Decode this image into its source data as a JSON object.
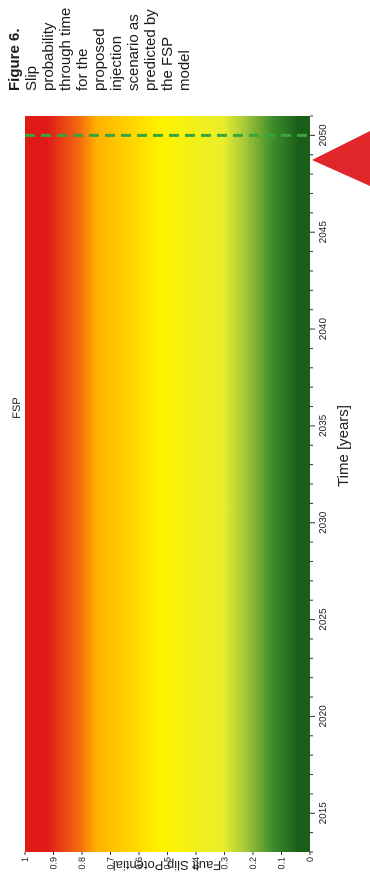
{
  "chart_data": {
    "type": "heatmap",
    "title": "FSP",
    "xlabel": "Time [years]",
    "ylabel": "Fault Slip Potential",
    "xlim": [
      2013,
      2051
    ],
    "ylim": [
      0,
      1
    ],
    "x_ticks": [
      "2015",
      "2020",
      "2025",
      "2030",
      "2035",
      "2040",
      "2045",
      "2050"
    ],
    "y_ticks": [
      "0",
      "0.1",
      "0.2",
      "0.3",
      "0.4",
      "0.5",
      "0.6",
      "0.7",
      "0.8",
      "0.9",
      "1"
    ],
    "color_bands": [
      {
        "from": 0.0,
        "to": 0.08,
        "color": "#1a5e1a"
      },
      {
        "from": 0.08,
        "to": 0.18,
        "color": "#3d8c2a"
      },
      {
        "from": 0.18,
        "to": 0.28,
        "color": "#a6c93a"
      },
      {
        "from": 0.28,
        "to": 0.33,
        "color": "#e9ee2c"
      },
      {
        "from": 0.33,
        "to": 0.72,
        "color": "#fff200"
      },
      {
        "from": 0.72,
        "to": 0.78,
        "color": "#ffb000"
      },
      {
        "from": 0.78,
        "to": 0.84,
        "color": "#f36a10"
      },
      {
        "from": 0.84,
        "to": 1.0,
        "color": "#e01b17"
      }
    ],
    "markers": [
      {
        "x": 2050,
        "style": "dashed",
        "color": "#3aa63a"
      }
    ],
    "grid": false
  },
  "caption": {
    "heading": "Figure 6.",
    "body": "Slip probability through time for the proposed injection scenario as predicted by the FSP model"
  },
  "colors": {
    "annotation_arrow": "#e0262a"
  }
}
